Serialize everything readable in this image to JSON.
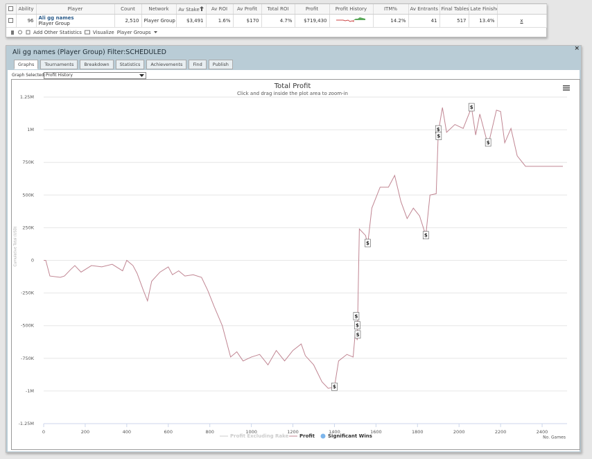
{
  "table": {
    "columns": [
      "Ability",
      "Player",
      "Count",
      "Network",
      "Av Stake",
      "Av ROI",
      "Av Profit",
      "Total ROI",
      "Profit",
      "Profit History",
      "ITM%",
      "Av Entrants",
      "Final Tables",
      "Late Finishes"
    ],
    "row": {
      "ability": "96",
      "player": "Ali gg names",
      "player_type": "Player Group",
      "count": "2,510",
      "network": "Player Group",
      "av_stake": "$3,491",
      "av_roi": "1.6%",
      "av_profit": "$170",
      "total_roi": "4.7%",
      "profit": "$719,430",
      "itm": "14.2%",
      "av_entrants": "41",
      "final_tables": "517",
      "late_finishes": "13.4%",
      "remove": "x"
    }
  },
  "toolbar": {
    "add_stats": "Add Other Statistics",
    "visualize": "Visualize",
    "player_groups": "Player Groups"
  },
  "panel": {
    "title": "Ali gg names (Player Group) Filter:SCHEDULED",
    "tabs": [
      "Graphs",
      "Tournaments",
      "Breakdown",
      "Statistics",
      "Achievements",
      "Find",
      "Publish"
    ],
    "graph_selected_label": "Graph Selected:",
    "graph_selected": "Profit History"
  },
  "chart_data": {
    "type": "line",
    "title": "Total Profit",
    "subtitle": "Click and drag inside the plot area to zoom-in",
    "x_label": "No. Games",
    "y_label": "Cumulative Total (USD)",
    "xlim": [
      0,
      2520
    ],
    "xticks": [
      0,
      200,
      400,
      600,
      800,
      1000,
      1200,
      1400,
      1600,
      1800,
      2000,
      2200,
      2400
    ],
    "ylim": [
      -1250000,
      1250000
    ],
    "yticks": [
      {
        "value": 1250000,
        "label": "1.25M"
      },
      {
        "value": 1000000,
        "label": "1M"
      },
      {
        "value": 750000,
        "label": "750K"
      },
      {
        "value": 500000,
        "label": "500K"
      },
      {
        "value": 250000,
        "label": "250K"
      },
      0,
      {
        "value": -250000,
        "label": "-250K"
      },
      {
        "value": -500000,
        "label": "-500K"
      },
      {
        "value": -750000,
        "label": "-750K"
      },
      {
        "value": -1000000,
        "label": "-1M"
      },
      {
        "value": -1250000,
        "label": "-1.25M"
      }
    ],
    "grid": true,
    "hidden_series": [
      {
        "name": "Profit Excluding Rake",
        "color": "#cccccc"
      }
    ],
    "series": [
      {
        "name": "Profit",
        "color": "#c08592",
        "x": [
          0,
          10,
          30,
          80,
          100,
          130,
          150,
          180,
          230,
          280,
          330,
          380,
          400,
          430,
          450,
          480,
          500,
          520,
          560,
          600,
          620,
          650,
          680,
          720,
          760,
          790,
          820,
          860,
          900,
          930,
          960,
          1000,
          1040,
          1080,
          1120,
          1160,
          1200,
          1240,
          1260,
          1300,
          1340,
          1370,
          1400,
          1420,
          1460,
          1490,
          1500,
          1510,
          1520,
          1550,
          1560,
          1580,
          1620,
          1660,
          1690,
          1720,
          1750,
          1780,
          1810,
          1840,
          1860,
          1890,
          1900,
          1920,
          1940,
          1980,
          2020,
          2060,
          2080,
          2100,
          2140,
          2180,
          2200,
          2220,
          2250,
          2280,
          2320,
          2400,
          2500
        ],
        "values": [
          0,
          0,
          -120000,
          -130000,
          -120000,
          -70000,
          -40000,
          -90000,
          -40000,
          -50000,
          -30000,
          -80000,
          0,
          -40000,
          -100000,
          -230000,
          -310000,
          -160000,
          -90000,
          -50000,
          -110000,
          -80000,
          -120000,
          -110000,
          -130000,
          -230000,
          -350000,
          -500000,
          -740000,
          -700000,
          -770000,
          -740000,
          -720000,
          -800000,
          -690000,
          -770000,
          -690000,
          -640000,
          -730000,
          -800000,
          -930000,
          -980000,
          -970000,
          -770000,
          -720000,
          -740000,
          -560000,
          -610000,
          240000,
          190000,
          120000,
          400000,
          560000,
          560000,
          650000,
          450000,
          320000,
          400000,
          340000,
          190000,
          500000,
          510000,
          980000,
          1170000,
          980000,
          1040000,
          1010000,
          1170000,
          960000,
          1120000,
          880000,
          1150000,
          1140000,
          900000,
          1010000,
          800000,
          720000,
          720000,
          720000
        ]
      },
      {
        "name": "Significant Wins",
        "color": "#7cb5ec",
        "flag_label": "$",
        "x": [
          1400,
          1505,
          1510,
          1512,
          1560,
          1840,
          1900,
          1902,
          2060,
          2140
        ],
        "values": [
          -970000,
          -430000,
          -500000,
          -570000,
          130000,
          190000,
          1000000,
          950000,
          1170000,
          900000
        ]
      }
    ]
  }
}
